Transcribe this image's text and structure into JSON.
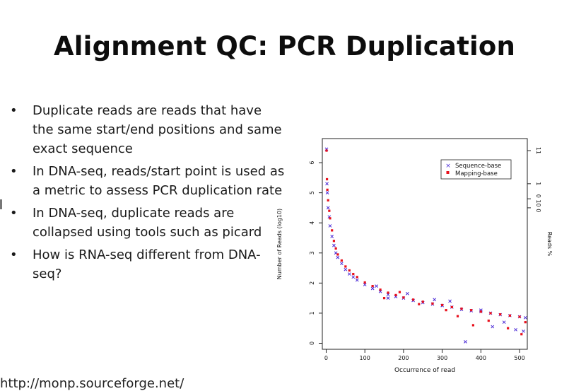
{
  "slide": {
    "title": "Alignment QC: PCR Duplication",
    "bullets": [
      "Duplicate reads are reads that have the same start/end positions and same exact sequence",
      "In DNA-seq, reads/start point is used as a metric to assess PCR duplication rate",
      "In DNA-seq, duplicate reads are collapsed using tools such as picard",
      "How is RNA-seq different from DNA-seq?"
    ],
    "footer_url": "http://monp.sourceforge.net/"
  },
  "chart_data": {
    "type": "scatter",
    "xlabel": "Occurrence of read",
    "ylabel": "Number of Reads (log10)",
    "y2label": "Reads %",
    "xlim": [
      -10,
      520
    ],
    "ylim": [
      -0.2,
      6.8
    ],
    "xticks": [
      "0",
      "100",
      "200",
      "300",
      "400",
      "500"
    ],
    "yticks": [
      "0",
      "1",
      "2",
      "3",
      "4",
      "5",
      "6"
    ],
    "y2ticks": [
      "11",
      "1",
      "0 1",
      "0 0"
    ],
    "legend_position": "top-right",
    "grid": false,
    "series": [
      {
        "name": "Sequence-base",
        "marker": "x",
        "color": "#4b2bd6",
        "x": [
          1,
          2,
          3,
          5,
          8,
          10,
          15,
          20,
          25,
          30,
          40,
          50,
          60,
          70,
          80,
          100,
          120,
          140,
          160,
          180,
          200,
          225,
          250,
          275,
          300,
          325,
          350,
          375,
          400,
          425,
          450,
          475,
          500,
          515,
          130,
          160,
          210,
          280,
          320,
          360,
          400,
          430,
          460,
          490,
          510
        ],
        "y": [
          6.45,
          5.3,
          5.0,
          4.5,
          4.2,
          3.9,
          3.55,
          3.25,
          3.0,
          2.85,
          2.65,
          2.45,
          2.3,
          2.2,
          2.1,
          1.95,
          1.82,
          1.72,
          1.62,
          1.55,
          1.5,
          1.42,
          1.35,
          1.3,
          1.25,
          1.2,
          1.12,
          1.08,
          1.05,
          1.0,
          0.95,
          0.92,
          0.88,
          0.85,
          1.9,
          1.5,
          1.65,
          1.45,
          1.4,
          0.05,
          1.1,
          0.55,
          0.7,
          0.45,
          0.4
        ]
      },
      {
        "name": "Mapping-base",
        "marker": "square",
        "color": "#e8101c",
        "x": [
          1,
          2,
          3,
          5,
          8,
          10,
          15,
          20,
          25,
          30,
          40,
          50,
          60,
          70,
          80,
          100,
          120,
          140,
          160,
          180,
          200,
          225,
          250,
          275,
          300,
          325,
          350,
          375,
          400,
          425,
          450,
          475,
          500,
          515,
          150,
          190,
          240,
          310,
          340,
          380,
          420,
          470,
          505
        ],
        "y": [
          6.4,
          5.45,
          5.1,
          4.75,
          4.4,
          4.15,
          3.75,
          3.4,
          3.15,
          2.95,
          2.75,
          2.55,
          2.42,
          2.3,
          2.2,
          2.02,
          1.9,
          1.78,
          1.68,
          1.6,
          1.52,
          1.45,
          1.38,
          1.32,
          1.27,
          1.2,
          1.15,
          1.1,
          1.05,
          1.0,
          0.96,
          0.92,
          0.88,
          0.7,
          1.5,
          1.7,
          1.3,
          1.1,
          0.9,
          0.6,
          0.75,
          0.5,
          0.3
        ]
      }
    ]
  }
}
